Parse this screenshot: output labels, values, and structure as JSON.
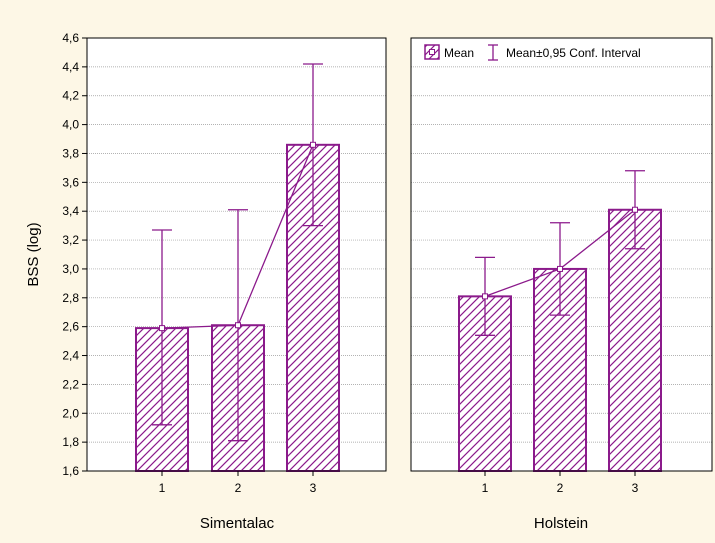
{
  "chart_data": {
    "type": "bar",
    "ylabel": "BSS (log)",
    "ylim": [
      1.6,
      4.6
    ],
    "yticks": [
      "1,6",
      "1,8",
      "2,0",
      "2,2",
      "2,4",
      "2,6",
      "2,8",
      "3,0",
      "3,2",
      "3,4",
      "3,6",
      "3,8",
      "4,0",
      "4,2",
      "4,4",
      "4,6"
    ],
    "grid": true,
    "legend": {
      "placement": "top of right panel",
      "mean_label": "Mean",
      "ci_label": "Mean±0,95 Conf. Interval"
    },
    "colors": {
      "bar": "#8b1a8b",
      "hatch": "#8b1a8b",
      "background": "#fdf7e6",
      "plot": "#ffffff"
    },
    "panels": [
      {
        "title": "Simentalac",
        "categories": [
          "1",
          "2",
          "3"
        ],
        "series": [
          {
            "name": "Mean",
            "values": [
              2.59,
              2.61,
              3.86
            ]
          },
          {
            "name": "Mean±0,95 Conf. Interval",
            "lower": [
              1.92,
              1.81,
              3.3
            ],
            "upper": [
              3.27,
              3.41,
              4.42
            ]
          }
        ]
      },
      {
        "title": "Holstein",
        "categories": [
          "1",
          "2",
          "3"
        ],
        "series": [
          {
            "name": "Mean",
            "values": [
              2.81,
              3.0,
              3.41
            ]
          },
          {
            "name": "Mean±0,95 Conf. Interval",
            "lower": [
              2.54,
              2.68,
              3.14
            ],
            "upper": [
              3.08,
              3.32,
              3.68
            ]
          }
        ]
      }
    ]
  }
}
